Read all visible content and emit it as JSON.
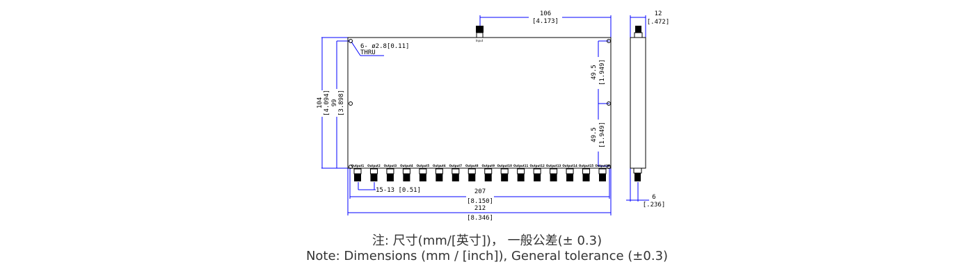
{
  "drawing": {
    "input_label": "Input",
    "hole_callout_line1": "6- ø2.8[0.11]",
    "hole_callout_line2": "THRU",
    "dims": {
      "top_width_mm": "106",
      "top_width_in": "[4.173]",
      "side_width_mm": "12",
      "side_width_in": "[.472]",
      "height_outer_mm": "104",
      "height_outer_in": "[4.094]",
      "height_inner_mm": "99",
      "height_inner_in": "[3.898]",
      "hole_spacing_upper_mm": "49.5",
      "hole_spacing_upper_in": "[1.949]",
      "hole_spacing_lower_mm": "49.5",
      "hole_spacing_lower_in": "[1.949]",
      "connector_pitch": "15-13 [0.51]",
      "hole_span_mm": "207",
      "hole_span_in": "[8.150]",
      "total_length_mm": "212",
      "total_length_in": "[8.346]",
      "side_offset_mm": "6",
      "side_offset_in": "[.236]"
    },
    "outputs": [
      "Output1",
      "Output2",
      "Output3",
      "Output4",
      "Output5",
      "Output6",
      "Output7",
      "Output8",
      "Output9",
      "Output10",
      "Output11",
      "Output12",
      "Output13",
      "Output14",
      "Output15",
      "Output16"
    ],
    "line_color": "#0000ff"
  },
  "notes": {
    "line1": "注: 尺寸(mm/[英寸])， 一般公差(± 0.3)",
    "line2": "Note: Dimensions (mm / [inch]), General tolerance (±0.3)"
  }
}
